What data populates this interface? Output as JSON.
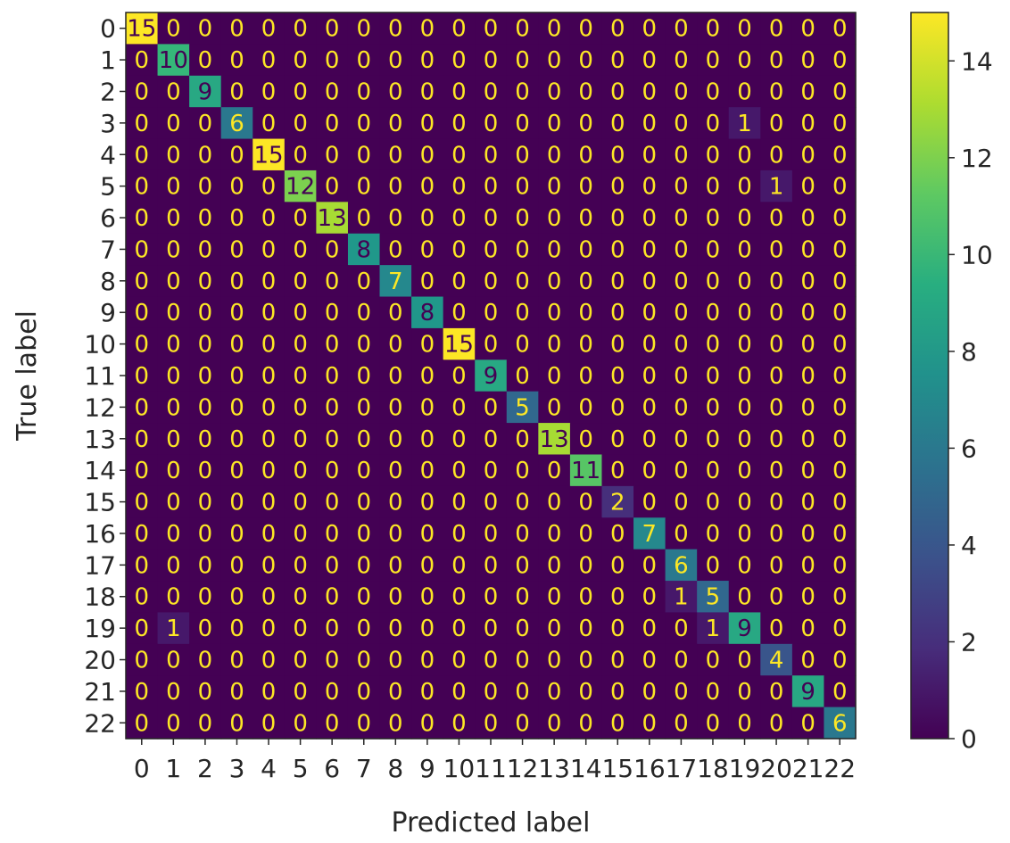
{
  "chart_data": {
    "type": "heatmap",
    "title": "",
    "xlabel": "Predicted label",
    "ylabel": "True label",
    "x_tick_labels": [
      "0",
      "1",
      "2",
      "3",
      "4",
      "5",
      "6",
      "7",
      "8",
      "9",
      "10",
      "11",
      "12",
      "13",
      "14",
      "15",
      "16",
      "17",
      "18",
      "19",
      "20",
      "21",
      "22"
    ],
    "y_tick_labels": [
      "0",
      "1",
      "2",
      "3",
      "4",
      "5",
      "6",
      "7",
      "8",
      "9",
      "10",
      "11",
      "12",
      "13",
      "14",
      "15",
      "16",
      "17",
      "18",
      "19",
      "20",
      "21",
      "22"
    ],
    "matrix": [
      [
        15,
        0,
        0,
        0,
        0,
        0,
        0,
        0,
        0,
        0,
        0,
        0,
        0,
        0,
        0,
        0,
        0,
        0,
        0,
        0,
        0,
        0,
        0
      ],
      [
        0,
        10,
        0,
        0,
        0,
        0,
        0,
        0,
        0,
        0,
        0,
        0,
        0,
        0,
        0,
        0,
        0,
        0,
        0,
        0,
        0,
        0,
        0
      ],
      [
        0,
        0,
        9,
        0,
        0,
        0,
        0,
        0,
        0,
        0,
        0,
        0,
        0,
        0,
        0,
        0,
        0,
        0,
        0,
        0,
        0,
        0,
        0
      ],
      [
        0,
        0,
        0,
        6,
        0,
        0,
        0,
        0,
        0,
        0,
        0,
        0,
        0,
        0,
        0,
        0,
        0,
        0,
        0,
        1,
        0,
        0,
        0
      ],
      [
        0,
        0,
        0,
        0,
        15,
        0,
        0,
        0,
        0,
        0,
        0,
        0,
        0,
        0,
        0,
        0,
        0,
        0,
        0,
        0,
        0,
        0,
        0
      ],
      [
        0,
        0,
        0,
        0,
        0,
        12,
        0,
        0,
        0,
        0,
        0,
        0,
        0,
        0,
        0,
        0,
        0,
        0,
        0,
        0,
        1,
        0,
        0
      ],
      [
        0,
        0,
        0,
        0,
        0,
        0,
        13,
        0,
        0,
        0,
        0,
        0,
        0,
        0,
        0,
        0,
        0,
        0,
        0,
        0,
        0,
        0,
        0
      ],
      [
        0,
        0,
        0,
        0,
        0,
        0,
        0,
        8,
        0,
        0,
        0,
        0,
        0,
        0,
        0,
        0,
        0,
        0,
        0,
        0,
        0,
        0,
        0
      ],
      [
        0,
        0,
        0,
        0,
        0,
        0,
        0,
        0,
        7,
        0,
        0,
        0,
        0,
        0,
        0,
        0,
        0,
        0,
        0,
        0,
        0,
        0,
        0
      ],
      [
        0,
        0,
        0,
        0,
        0,
        0,
        0,
        0,
        0,
        8,
        0,
        0,
        0,
        0,
        0,
        0,
        0,
        0,
        0,
        0,
        0,
        0,
        0
      ],
      [
        0,
        0,
        0,
        0,
        0,
        0,
        0,
        0,
        0,
        0,
        15,
        0,
        0,
        0,
        0,
        0,
        0,
        0,
        0,
        0,
        0,
        0,
        0
      ],
      [
        0,
        0,
        0,
        0,
        0,
        0,
        0,
        0,
        0,
        0,
        0,
        9,
        0,
        0,
        0,
        0,
        0,
        0,
        0,
        0,
        0,
        0,
        0
      ],
      [
        0,
        0,
        0,
        0,
        0,
        0,
        0,
        0,
        0,
        0,
        0,
        0,
        5,
        0,
        0,
        0,
        0,
        0,
        0,
        0,
        0,
        0,
        0
      ],
      [
        0,
        0,
        0,
        0,
        0,
        0,
        0,
        0,
        0,
        0,
        0,
        0,
        0,
        13,
        0,
        0,
        0,
        0,
        0,
        0,
        0,
        0,
        0
      ],
      [
        0,
        0,
        0,
        0,
        0,
        0,
        0,
        0,
        0,
        0,
        0,
        0,
        0,
        0,
        11,
        0,
        0,
        0,
        0,
        0,
        0,
        0,
        0
      ],
      [
        0,
        0,
        0,
        0,
        0,
        0,
        0,
        0,
        0,
        0,
        0,
        0,
        0,
        0,
        0,
        2,
        0,
        0,
        0,
        0,
        0,
        0,
        0
      ],
      [
        0,
        0,
        0,
        0,
        0,
        0,
        0,
        0,
        0,
        0,
        0,
        0,
        0,
        0,
        0,
        0,
        7,
        0,
        0,
        0,
        0,
        0,
        0
      ],
      [
        0,
        0,
        0,
        0,
        0,
        0,
        0,
        0,
        0,
        0,
        0,
        0,
        0,
        0,
        0,
        0,
        0,
        6,
        0,
        0,
        0,
        0,
        0
      ],
      [
        0,
        0,
        0,
        0,
        0,
        0,
        0,
        0,
        0,
        0,
        0,
        0,
        0,
        0,
        0,
        0,
        0,
        1,
        5,
        0,
        0,
        0,
        0
      ],
      [
        0,
        1,
        0,
        0,
        0,
        0,
        0,
        0,
        0,
        0,
        0,
        0,
        0,
        0,
        0,
        0,
        0,
        0,
        1,
        9,
        0,
        0,
        0
      ],
      [
        0,
        0,
        0,
        0,
        0,
        0,
        0,
        0,
        0,
        0,
        0,
        0,
        0,
        0,
        0,
        0,
        0,
        0,
        0,
        0,
        4,
        0,
        0
      ],
      [
        0,
        0,
        0,
        0,
        0,
        0,
        0,
        0,
        0,
        0,
        0,
        0,
        0,
        0,
        0,
        0,
        0,
        0,
        0,
        0,
        0,
        9,
        0
      ],
      [
        0,
        0,
        0,
        0,
        0,
        0,
        0,
        0,
        0,
        0,
        0,
        0,
        0,
        0,
        0,
        0,
        0,
        0,
        0,
        0,
        0,
        0,
        6
      ]
    ],
    "value_range": [
      0,
      15
    ],
    "colormap": "viridis",
    "colorbar": {
      "ticks": [
        "0",
        "2",
        "4",
        "6",
        "8",
        "10",
        "12",
        "14"
      ],
      "tick_values": [
        0,
        2,
        4,
        6,
        8,
        10,
        12,
        14
      ],
      "position": "right"
    },
    "grid": false,
    "text_color_low": "#fde725",
    "text_color_high": "#440154"
  }
}
